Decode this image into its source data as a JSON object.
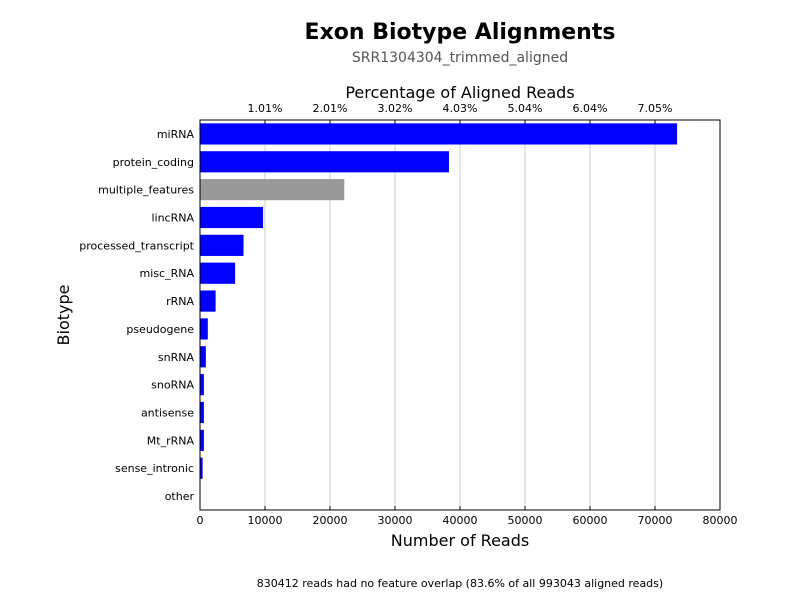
{
  "title": "Exon Biotype Alignments",
  "subtitle": "SRR1304304_trimmed_aligned",
  "footer": "830412 reads had no feature overlap (83.6% of all 993043 aligned reads)",
  "colors": {
    "primary": "#0000ff",
    "multiple": "#999999",
    "grid": "#cccccc"
  },
  "chart_data": {
    "type": "bar",
    "orientation": "horizontal",
    "xlabel": "Number of Reads",
    "ylabel": "Biotype",
    "top_axis_label": "Percentage of Aligned Reads",
    "xlim": [
      0,
      80000
    ],
    "x_ticks": [
      0,
      10000,
      20000,
      30000,
      40000,
      50000,
      60000,
      70000,
      80000
    ],
    "top_ticks": [
      {
        "value": 10000,
        "label": "1.01%"
      },
      {
        "value": 20000,
        "label": "2.01%"
      },
      {
        "value": 30000,
        "label": "3.02%"
      },
      {
        "value": 40000,
        "label": "4.03%"
      },
      {
        "value": 50000,
        "label": "5.04%"
      },
      {
        "value": 60000,
        "label": "6.04%"
      },
      {
        "value": 70000,
        "label": "7.05%"
      }
    ],
    "grid": "vertical",
    "categories": [
      "miRNA",
      "protein_coding",
      "multiple_features",
      "lincRNA",
      "processed_transcript",
      "misc_RNA",
      "rRNA",
      "pseudogene",
      "snRNA",
      "snoRNA",
      "antisense",
      "Mt_rRNA",
      "sense_intronic",
      "other"
    ],
    "values": [
      73400,
      38300,
      22200,
      9700,
      6700,
      5400,
      2400,
      1200,
      900,
      600,
      600,
      600,
      400,
      0
    ],
    "bar_kinds": [
      "primary",
      "primary",
      "multiple",
      "primary",
      "primary",
      "primary",
      "primary",
      "primary",
      "primary",
      "primary",
      "primary",
      "primary",
      "primary",
      "primary"
    ]
  }
}
